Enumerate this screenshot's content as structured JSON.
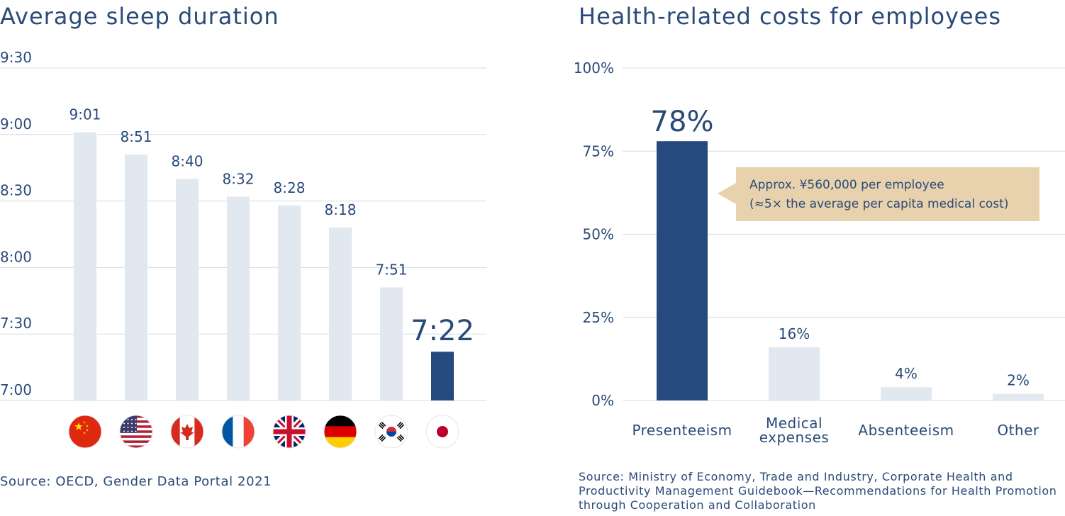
{
  "chart_data": [
    {
      "type": "bar",
      "title": "Average sleep duration",
      "unit": "hours:minutes",
      "y_ticks": [
        "7:00",
        "7:30",
        "8:00",
        "8:30",
        "9:00",
        "9:30"
      ],
      "ylim_minutes": [
        420,
        570
      ],
      "categories": [
        "China",
        "United States",
        "Canada",
        "France",
        "United Kingdom",
        "Germany",
        "South Korea",
        "Japan"
      ],
      "flags": [
        "china-flag-icon",
        "usa-flag-icon",
        "canada-flag-icon",
        "france-flag-icon",
        "uk-flag-icon",
        "germany-flag-icon",
        "south-korea-flag-icon",
        "japan-flag-icon"
      ],
      "labels": [
        "9:01",
        "8:51",
        "8:40",
        "8:32",
        "8:28",
        "8:18",
        "7:51",
        "7:22"
      ],
      "values_minutes": [
        541,
        531,
        520,
        512,
        508,
        498,
        471,
        442
      ],
      "highlight_index": 7,
      "source": "Source: OECD, Gender Data Portal 2021"
    },
    {
      "type": "bar",
      "title": "Health-related costs for employees",
      "y_ticks": [
        "0%",
        "25%",
        "50%",
        "75%",
        "100%"
      ],
      "ylim": [
        0,
        100
      ],
      "categories": [
        [
          "Presenteeism"
        ],
        [
          "Medical",
          "expenses"
        ],
        [
          "Absenteeism"
        ],
        [
          "Other"
        ]
      ],
      "values": [
        78,
        16,
        4,
        2
      ],
      "labels": [
        "78%",
        "16%",
        "4%",
        "2%"
      ],
      "highlight_index": 0,
      "annotation": {
        "lines": [
          "Approx. ¥560,000 per employee",
          "(≈5× the average per capita medical cost)"
        ]
      },
      "source": "Source: Ministry of Economy, Trade and Industry, Corporate Health and Productivity Management Guidebook—Recommendations for Health Promotion through Cooperation and Collaboration"
    }
  ],
  "colors": {
    "highlight": "#264a7e",
    "bar": "#e1e8f0",
    "grid": "#d6dbe1",
    "text": "#2a4a78",
    "annotation_bg": "#e8d2ad"
  }
}
